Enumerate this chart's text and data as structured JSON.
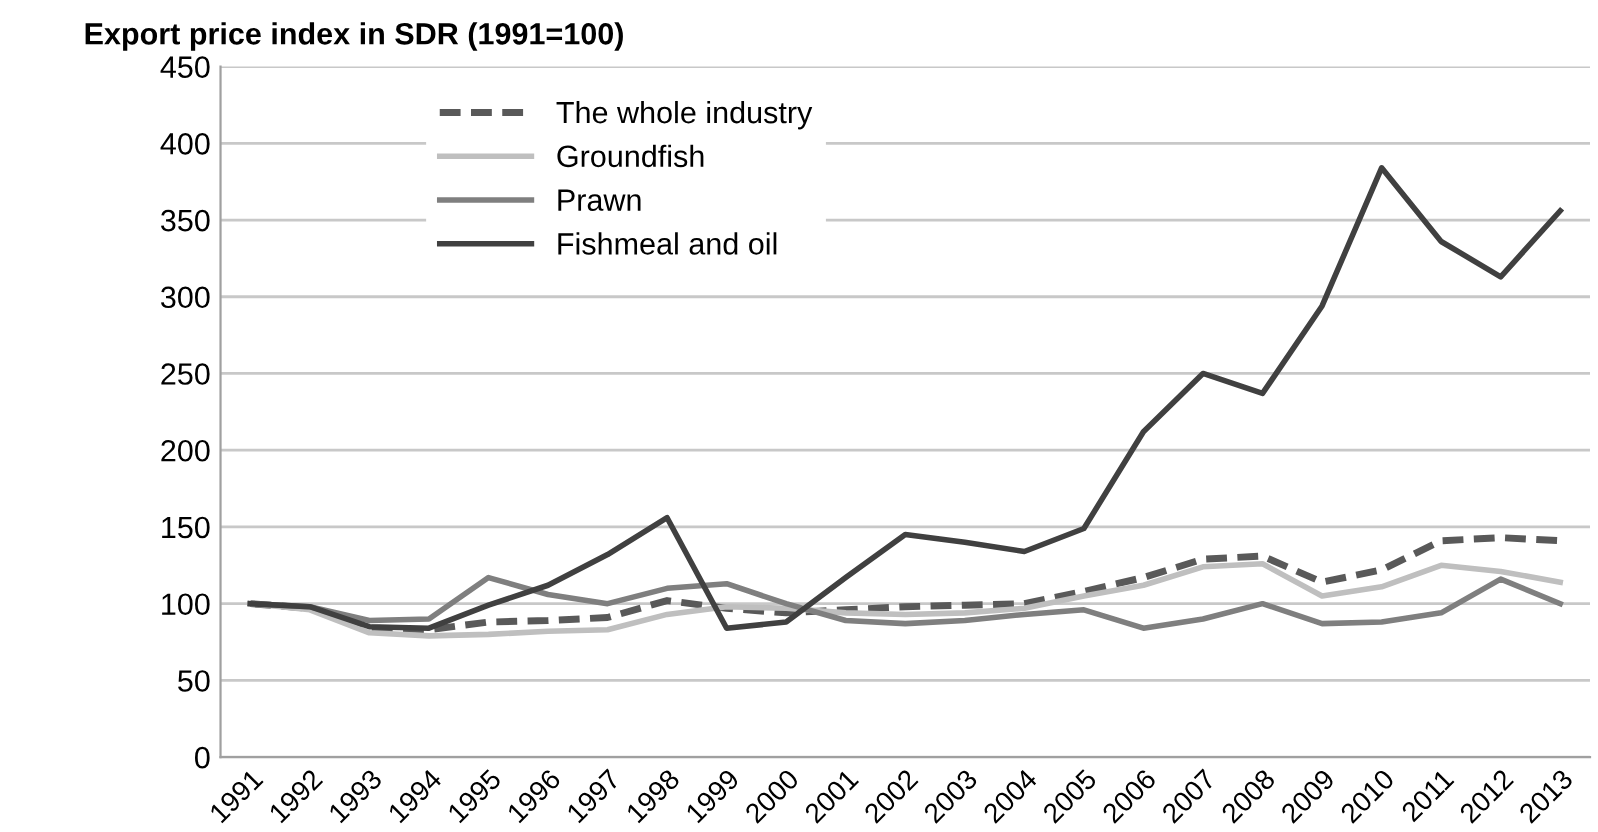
{
  "chart_data": {
    "type": "line",
    "title": "Export price index in SDR (1991=100)",
    "categories": [
      "1991",
      "1992",
      "1993",
      "1994",
      "1995",
      "1996",
      "1997",
      "1998",
      "1999",
      "2000",
      "2001",
      "2002",
      "2003",
      "2004",
      "2005",
      "2006",
      "2007",
      "2008",
      "2009",
      "2010",
      "2011",
      "2012",
      "2013"
    ],
    "series": [
      {
        "name": "The whole industry",
        "color": "#595959",
        "line_style": "dashed",
        "values": [
          100,
          97,
          84,
          83,
          88,
          89,
          91,
          102,
          97,
          94,
          96,
          98,
          99,
          100,
          108,
          117,
          129,
          131,
          114,
          122,
          141,
          143,
          141
        ]
      },
      {
        "name": "Groundfish",
        "color": "#bfbfbf",
        "values": [
          100,
          96,
          81,
          79,
          80,
          82,
          83,
          93,
          98,
          97,
          94,
          93,
          94,
          97,
          105,
          112,
          124,
          126,
          105,
          111,
          125,
          121,
          114
        ]
      },
      {
        "name": "Prawn",
        "color": "#7f7f7f",
        "values": [
          100,
          98,
          89,
          90,
          117,
          106,
          100,
          110,
          113,
          100,
          89,
          87,
          89,
          93,
          96,
          84,
          90,
          100,
          87,
          88,
          94,
          116,
          100
        ]
      },
      {
        "name": "Fishmeal and oil",
        "color": "#404040",
        "values": [
          100,
          98,
          85,
          84,
          99,
          112,
          132,
          156,
          84,
          88,
          117,
          145,
          140,
          134,
          149,
          212,
          250,
          237,
          294,
          384,
          336,
          313,
          356
        ]
      }
    ],
    "ylim": [
      0,
      450
    ],
    "yticks": [
      0,
      50,
      100,
      150,
      200,
      250,
      300,
      350,
      400,
      450
    ],
    "grid": "y",
    "legend": "top left",
    "marker": "none",
    "line_style": "solid"
  }
}
